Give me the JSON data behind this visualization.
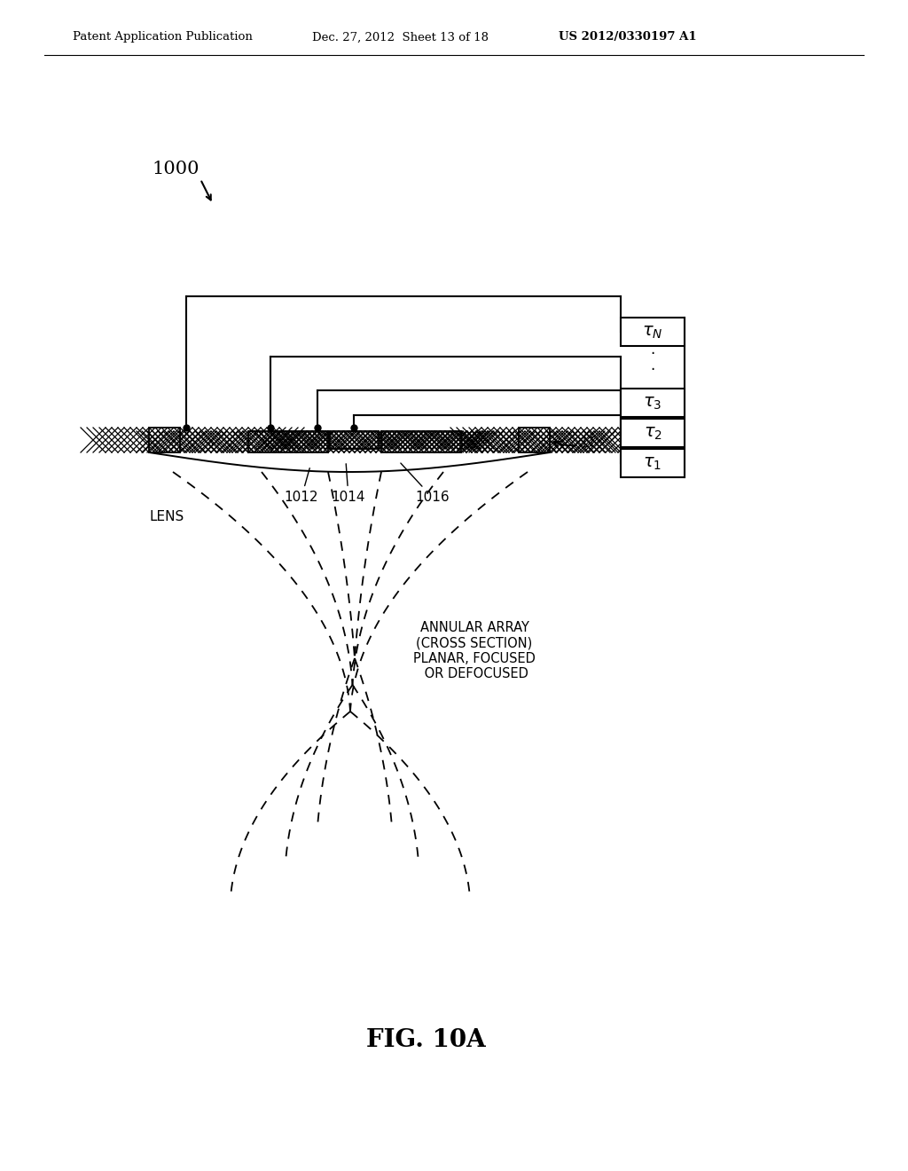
{
  "header_left": "Patent Application Publication",
  "header_mid": "Dec. 27, 2012  Sheet 13 of 18",
  "header_right": "US 2012/0330197 A1",
  "fig_label": "FIG. 10A",
  "diagram_label": "1000",
  "label_N": "N",
  "label_LENS": "LENS",
  "label_1012": "1012",
  "label_1014": "1014",
  "label_1016": "1016",
  "annular_text": "ANNULAR ARRAY\n(CROSS SECTION)\nPLANAR, FOCUSED\n OR DEFOCUSED",
  "bg_color": "#ffffff",
  "line_color": "#000000",
  "tau_labels": [
    "$\\tau_1$",
    "$\\tau_2$",
    "$\\tau_3$",
    "$\\tau_N$"
  ]
}
